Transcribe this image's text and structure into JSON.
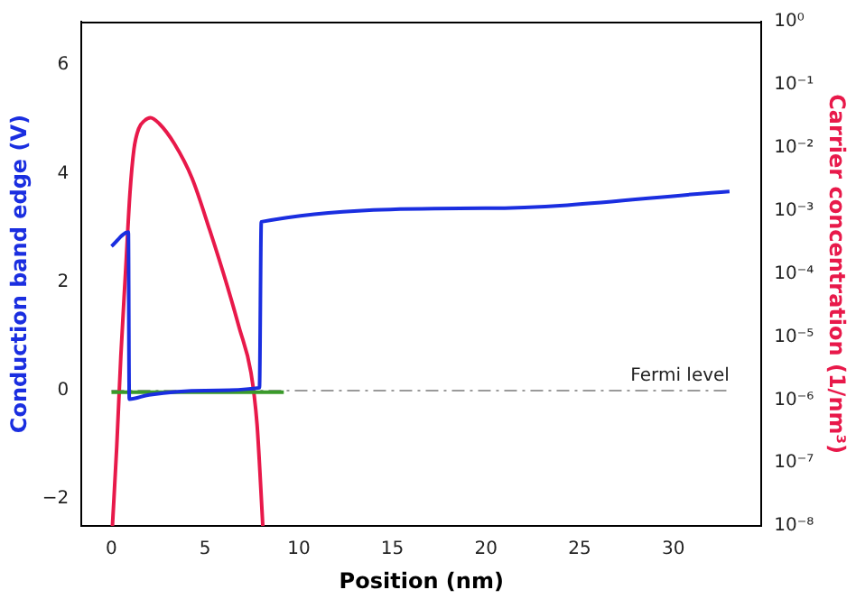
{
  "chart_data": {
    "type": "line",
    "xlabel": "Position (nm)",
    "ylabel": "Conduction band edge (V)",
    "y2label": "Carrier concentration (1/nm³)",
    "xlim": [
      -1.6,
      34.7
    ],
    "xticks": [
      0,
      5,
      10,
      15,
      20,
      25,
      30
    ],
    "ylim": [
      -2.5,
      6.8
    ],
    "yticks": [
      -2,
      0,
      2,
      4,
      6
    ],
    "y2lim": [
      1e-08,
      1
    ],
    "y2ticks": [
      {
        "value": 1,
        "label": "10⁰"
      },
      {
        "value": 0.1,
        "label": "10⁻¹"
      },
      {
        "value": 0.01,
        "label": "10⁻²"
      },
      {
        "value": 0.001,
        "label": "10⁻³"
      },
      {
        "value": 0.0001,
        "label": "10⁻⁴"
      },
      {
        "value": 1e-05,
        "label": "10⁻⁵"
      },
      {
        "value": 1e-06,
        "label": "10⁻⁶"
      },
      {
        "value": 1e-07,
        "label": "10⁻⁷"
      },
      {
        "value": 1e-08,
        "label": "10⁻⁸"
      }
    ],
    "log": "y2",
    "grid": false,
    "legend": false,
    "marker": "none",
    "line_style": "solid",
    "ref_lines": [
      {
        "axis": "y",
        "value": 0,
        "label": "Fermi level",
        "color": "#9a9a9a",
        "line_style": "dashdot"
      }
    ],
    "series": [
      {
        "color": "#1a2ee0",
        "x": [
          0,
          0.9,
          0.95,
          2,
          5,
          7.9,
          8.0,
          20,
          33
        ],
        "values": [
          2.66,
          2.92,
          -0.16,
          -0.08,
          0.0,
          0.05,
          3.11,
          3.36,
          3.67
        ]
      },
      {
        "color": "#3a9a2a",
        "x": [
          0,
          9.2
        ],
        "values": [
          -0.03,
          -0.03
        ]
      },
      {
        "color": "#e8194a",
        "axis": "y2",
        "x": [
          0.05,
          0.28,
          0.5,
          0.76,
          0.98,
          1.2,
          1.45,
          1.77,
          2.08,
          2.56,
          3.35,
          4.3,
          5.24,
          6.19,
          6.82,
          7.45,
          7.77,
          7.92,
          8.08
        ],
        "values": [
          1e-08,
          1.8e-07,
          5e-06,
          0.00012,
          0.0018,
          0.0095,
          0.02,
          0.027,
          0.03,
          0.024,
          0.0117,
          0.0033,
          0.0005,
          6.3e-05,
          1.4e-05,
          2.7e-06,
          4.2e-07,
          7.8e-08,
          1e-08
        ]
      }
    ]
  }
}
